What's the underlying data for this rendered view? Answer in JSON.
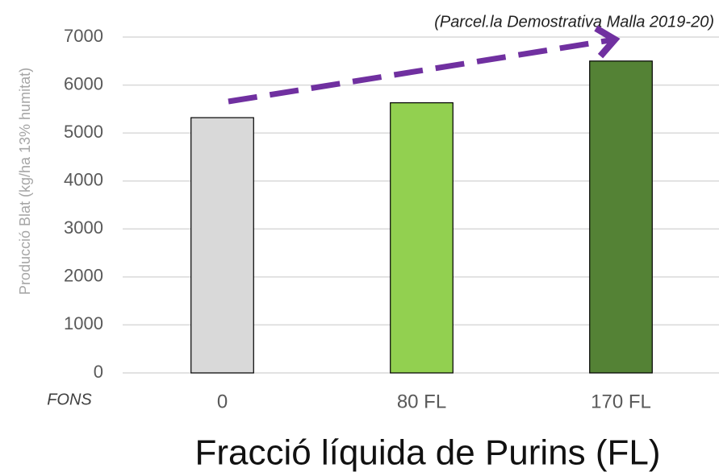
{
  "chart_data": {
    "type": "bar",
    "annotation": "(Parcel.la Demostrativa Malla 2019-20)",
    "ylabel": "Producció Blat (kg/ha 13% humitat)",
    "xlabel": "Fracció líquida de Purins (FL)",
    "baseline_label": "FONS",
    "categories": [
      "0",
      "80 FL",
      "170 FL"
    ],
    "values": [
      5320,
      5630,
      6500
    ],
    "colors": [
      "#d9d9d9",
      "#92d050",
      "#548235"
    ],
    "ylim": [
      0,
      7000
    ],
    "yticks": [
      0,
      1000,
      2000,
      3000,
      4000,
      5000,
      6000,
      7000
    ],
    "grid": true
  }
}
